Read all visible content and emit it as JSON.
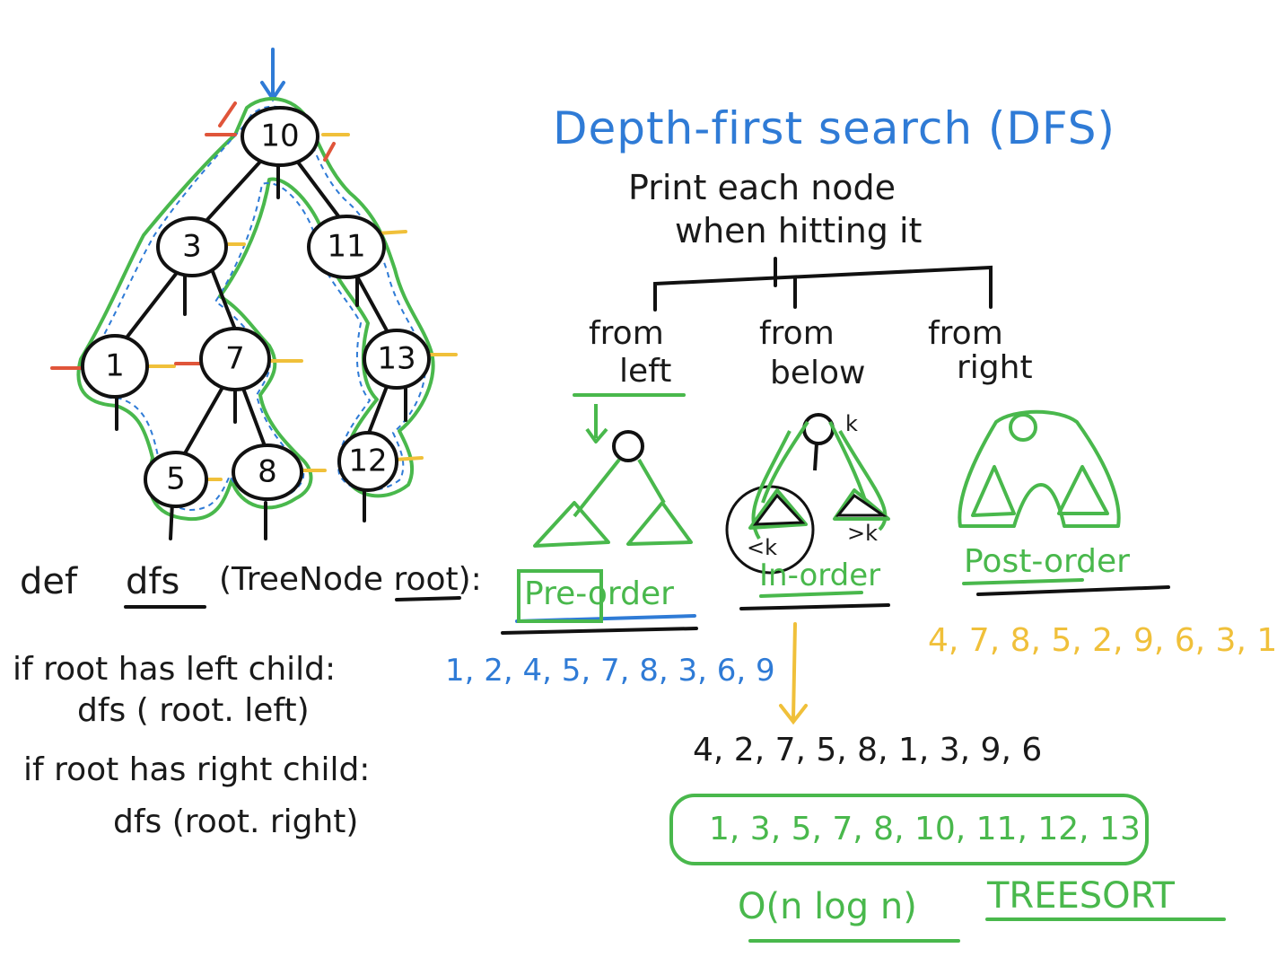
{
  "title": "Depth-first search (DFS)",
  "subtitle_line1": "Print each node",
  "subtitle_line2": "when hitting it",
  "branches": [
    {
      "line1": "from",
      "line2": "left",
      "order_label": "Pre-order"
    },
    {
      "line1": "from",
      "line2": "below",
      "order_label": "In-order"
    },
    {
      "line1": "from",
      "line2": "right",
      "order_label": "Post-order"
    }
  ],
  "inorder_annotations": {
    "node": "k",
    "left": "<k",
    "right": ">k"
  },
  "tree_nodes": [
    "10",
    "3",
    "11",
    "1",
    "7",
    "13",
    "5",
    "8",
    "12"
  ],
  "code": {
    "signature_def": "def",
    "signature_name": "dfs",
    "signature_params": "(TreeNode root):",
    "line1": "if root has left child:",
    "line2": "dfs ( root. left)",
    "line3": "if root has right child:",
    "line4": "dfs (root. right)"
  },
  "sequences": {
    "preorder": "1, 2, 4, 5, 7, 8, 3, 6, 9",
    "postorder": "4, 7, 8, 5, 2, 9, 6, 3, 1",
    "inorder": "4, 2, 7, 5, 8, 1, 3, 9, 6",
    "sorted": "1, 3, 5, 7, 8, 10, 11, 12, 13"
  },
  "complexity": "O(n log n)",
  "treesort": "TREESORT",
  "colors": {
    "ink": "#1a1a1a",
    "blue": "#2f7bd6",
    "green": "#49b84c",
    "yellow": "#f0c03a",
    "red": "#e0553a"
  }
}
